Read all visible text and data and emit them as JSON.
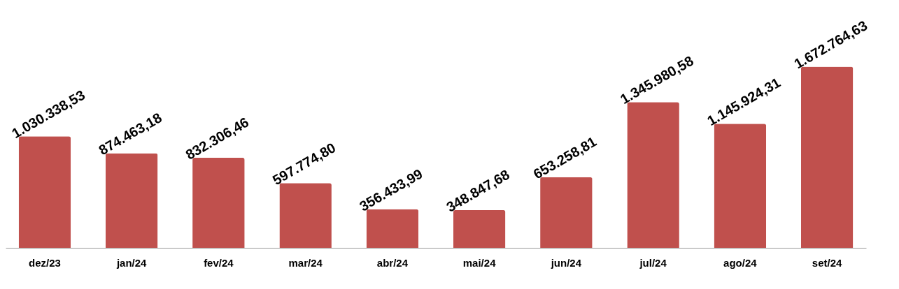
{
  "chart_data": {
    "type": "bar",
    "categories": [
      "dez/23",
      "jan/24",
      "fev/24",
      "mar/24",
      "abr/24",
      "mai/24",
      "jun/24",
      "jul/24",
      "ago/24",
      "set/24"
    ],
    "values": [
      1030338.53,
      874463.18,
      832306.46,
      597774.8,
      356433.99,
      348847.68,
      653258.81,
      1345980.58,
      1145924.31,
      1672764.63
    ],
    "value_labels": [
      "1.030.338,53",
      "874.463,18",
      "832.306,46",
      "597.774,80",
      "356.433,99",
      "348.847,68",
      "653.258,81",
      "1.345.980,58",
      "1.145.924,31",
      "1.672.764,63"
    ],
    "color": "#c0504d"
  }
}
